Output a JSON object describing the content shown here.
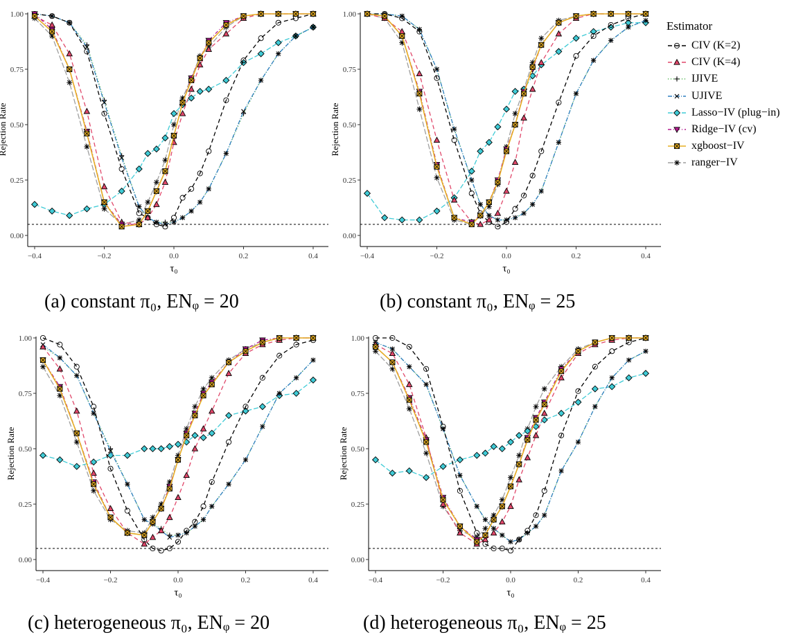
{
  "legend": {
    "title": "Estimator",
    "items": [
      {
        "label": "CIV (K=2)",
        "color": "#000000",
        "dash": "6,4",
        "marker": "circle"
      },
      {
        "label": "CIV (K=4)",
        "color": "#e0476a",
        "dash": "6,4",
        "marker": "triangle"
      },
      {
        "label": "IJIVE",
        "color": "#3caa3c",
        "dash": "1,3",
        "marker": "plus"
      },
      {
        "label": "UJIVE",
        "color": "#2e7fc0",
        "dash": "6,2,1,2",
        "marker": "x"
      },
      {
        "label": "Lasso−IV (plug−in)",
        "color": "#3fcbd6",
        "dash": "7,3",
        "marker": "diamond"
      },
      {
        "label": "Ridge−IV (cv)",
        "color": "#b3198d",
        "dash": "5,3,1,3",
        "marker": "triangle-down"
      },
      {
        "label": "xgboost−IV",
        "color": "#e6ad22",
        "dash": "",
        "marker": "boxx"
      },
      {
        "label": "ranger−IV",
        "color": "#9e9e9e",
        "dash": "8,3",
        "marker": "star"
      }
    ]
  },
  "captions": {
    "a": "(a) constant π₀, ENᵩ = 20",
    "b": "(b) constant π₀, ENᵩ = 25",
    "c": "(c) heterogeneous π₀, ENᵩ = 20",
    "d": "(d) heterogeneous π₀, ENᵩ = 25"
  },
  "chart_data": [
    {
      "type": "line",
      "panel": "a",
      "xlabel": "τ₀",
      "ylabel": "Rejection Rate",
      "xlim": [
        -0.4,
        0.4
      ],
      "ylim": [
        0,
        1
      ],
      "xticks": [
        "−0.4",
        "−0.2",
        "0.0",
        "0.2",
        "0.4"
      ],
      "yticks": [
        "0.00",
        "0.25",
        "0.50",
        "0.75",
        "1.00"
      ],
      "reference_line": 0.05,
      "x": [
        -0.4,
        -0.35,
        -0.3,
        -0.25,
        -0.2,
        -0.15,
        -0.1,
        -0.075,
        -0.05,
        -0.025,
        0,
        0.025,
        0.05,
        0.075,
        0.1,
        0.15,
        0.2,
        0.25,
        0.3,
        0.35,
        0.4
      ],
      "series": [
        {
          "name": "CIV (K=2)",
          "values": [
            1.0,
            0.99,
            0.96,
            0.83,
            0.55,
            0.3,
            0.1,
            0.08,
            0.05,
            0.04,
            0.08,
            0.17,
            0.21,
            0.28,
            0.38,
            0.61,
            0.79,
            0.89,
            0.96,
            0.98,
            1.0
          ]
        },
        {
          "name": "CIV (K=4)",
          "values": [
            0.99,
            0.95,
            0.82,
            0.56,
            0.22,
            0.06,
            0.05,
            0.08,
            0.14,
            0.24,
            0.42,
            0.55,
            0.66,
            0.77,
            0.84,
            0.91,
            0.98,
            1.0,
            1.0,
            1.0,
            1.0
          ]
        },
        {
          "name": "IJIVE",
          "values": [
            1.0,
            0.99,
            0.96,
            0.86,
            0.61,
            0.36,
            0.13,
            0.08,
            0.06,
            0.06,
            0.06,
            0.08,
            0.11,
            0.15,
            0.21,
            0.37,
            0.55,
            0.7,
            0.82,
            0.9,
            0.94
          ]
        },
        {
          "name": "UJIVE",
          "values": [
            1.0,
            0.99,
            0.96,
            0.85,
            0.6,
            0.35,
            0.13,
            0.08,
            0.06,
            0.05,
            0.06,
            0.08,
            0.11,
            0.15,
            0.21,
            0.37,
            0.56,
            0.7,
            0.82,
            0.9,
            0.94
          ]
        },
        {
          "name": "Lasso−IV (plug−in)",
          "values": [
            0.14,
            0.11,
            0.09,
            0.12,
            0.14,
            0.2,
            0.3,
            0.37,
            0.39,
            0.44,
            0.55,
            0.59,
            0.62,
            0.65,
            0.66,
            0.7,
            0.78,
            0.82,
            0.87,
            0.9,
            0.94
          ]
        },
        {
          "name": "Ridge−IV (cv)",
          "values": [
            1.0,
            0.93,
            0.75,
            0.47,
            0.15,
            0.05,
            0.05,
            0.11,
            0.2,
            0.29,
            0.45,
            0.6,
            0.71,
            0.8,
            0.88,
            0.96,
            0.99,
            1.0,
            1.0,
            1.0,
            1.0
          ]
        },
        {
          "name": "xgboost−IV",
          "values": [
            0.99,
            0.92,
            0.75,
            0.46,
            0.15,
            0.04,
            0.05,
            0.11,
            0.2,
            0.29,
            0.45,
            0.6,
            0.7,
            0.8,
            0.87,
            0.95,
            0.99,
            1.0,
            1.0,
            1.0,
            1.0
          ]
        },
        {
          "name": "ranger−IV",
          "values": [
            0.98,
            0.9,
            0.69,
            0.4,
            0.12,
            0.05,
            0.07,
            0.15,
            0.24,
            0.34,
            0.5,
            0.62,
            0.71,
            0.81,
            0.85,
            0.94,
            0.99,
            1.0,
            1.0,
            1.0,
            1.0
          ]
        }
      ]
    },
    {
      "type": "line",
      "panel": "b",
      "xlabel": "τ₀",
      "ylabel": "Rejection Rate",
      "xlim": [
        -0.4,
        0.4
      ],
      "ylim": [
        0,
        1
      ],
      "xticks": [
        "−0.4",
        "−0.2",
        "0.0",
        "0.2",
        "0.4"
      ],
      "yticks": [
        "0.00",
        "0.25",
        "0.50",
        "0.75",
        "1.00"
      ],
      "reference_line": 0.05,
      "x": [
        -0.4,
        -0.35,
        -0.3,
        -0.25,
        -0.2,
        -0.15,
        -0.1,
        -0.075,
        -0.05,
        -0.025,
        0,
        0.025,
        0.05,
        0.075,
        0.1,
        0.15,
        0.2,
        0.25,
        0.3,
        0.35,
        0.4
      ],
      "series": [
        {
          "name": "CIV (K=2)",
          "values": [
            1.0,
            1.0,
            0.98,
            0.92,
            0.71,
            0.43,
            0.19,
            0.1,
            0.06,
            0.04,
            0.06,
            0.12,
            0.18,
            0.27,
            0.38,
            0.6,
            0.81,
            0.9,
            0.95,
            0.98,
            1.0
          ]
        },
        {
          "name": "CIV (K=4)",
          "values": [
            1.0,
            0.98,
            0.92,
            0.73,
            0.43,
            0.16,
            0.06,
            0.05,
            0.07,
            0.1,
            0.2,
            0.33,
            0.53,
            0.66,
            0.78,
            0.91,
            0.98,
            1.0,
            1.0,
            1.0,
            1.0
          ]
        },
        {
          "name": "IJIVE",
          "values": [
            1.0,
            1.0,
            0.99,
            0.93,
            0.75,
            0.48,
            0.25,
            0.14,
            0.09,
            0.07,
            0.07,
            0.08,
            0.1,
            0.14,
            0.2,
            0.42,
            0.64,
            0.79,
            0.88,
            0.94,
            0.97
          ]
        },
        {
          "name": "UJIVE",
          "values": [
            1.0,
            1.0,
            0.99,
            0.93,
            0.75,
            0.48,
            0.25,
            0.14,
            0.09,
            0.07,
            0.07,
            0.08,
            0.1,
            0.14,
            0.2,
            0.42,
            0.64,
            0.79,
            0.88,
            0.94,
            0.97
          ]
        },
        {
          "name": "Lasso−IV (plug−in)",
          "values": [
            0.19,
            0.08,
            0.07,
            0.07,
            0.11,
            0.17,
            0.29,
            0.38,
            0.42,
            0.49,
            0.57,
            0.65,
            0.66,
            0.72,
            0.77,
            0.83,
            0.89,
            0.92,
            0.94,
            0.96,
            0.96
          ]
        },
        {
          "name": "Ridge−IV (cv)",
          "values": [
            1.0,
            0.99,
            0.9,
            0.65,
            0.32,
            0.08,
            0.06,
            0.09,
            0.15,
            0.25,
            0.39,
            0.5,
            0.65,
            0.75,
            0.86,
            0.96,
            0.99,
            1.0,
            1.0,
            1.0,
            1.0
          ]
        },
        {
          "name": "xgboost−IV",
          "values": [
            1.0,
            0.99,
            0.9,
            0.64,
            0.31,
            0.08,
            0.05,
            0.09,
            0.15,
            0.24,
            0.38,
            0.5,
            0.64,
            0.76,
            0.86,
            0.96,
            0.99,
            1.0,
            1.0,
            1.0,
            1.0
          ]
        },
        {
          "name": "ranger−IV",
          "values": [
            1.0,
            0.98,
            0.87,
            0.57,
            0.26,
            0.07,
            0.05,
            0.09,
            0.13,
            0.23,
            0.4,
            0.55,
            0.66,
            0.78,
            0.89,
            0.97,
            0.99,
            1.0,
            1.0,
            1.0,
            1.0
          ]
        }
      ]
    },
    {
      "type": "line",
      "panel": "c",
      "xlabel": "τ₀",
      "ylabel": "Rejection Rate",
      "xlim": [
        -0.4,
        0.4
      ],
      "ylim": [
        0,
        1
      ],
      "xticks": [
        "−0.4",
        "−0.2",
        "0.0",
        "0.2",
        "0.4"
      ],
      "yticks": [
        "0.00",
        "0.25",
        "0.50",
        "0.75",
        "1.00"
      ],
      "reference_line": 0.05,
      "x": [
        -0.4,
        -0.35,
        -0.3,
        -0.25,
        -0.2,
        -0.15,
        -0.1,
        -0.075,
        -0.05,
        -0.025,
        0,
        0.025,
        0.05,
        0.075,
        0.1,
        0.15,
        0.2,
        0.25,
        0.3,
        0.35,
        0.4
      ],
      "series": [
        {
          "name": "CIV (K=2)",
          "values": [
            1.0,
            0.97,
            0.87,
            0.69,
            0.41,
            0.22,
            0.09,
            0.05,
            0.04,
            0.05,
            0.08,
            0.13,
            0.17,
            0.24,
            0.35,
            0.53,
            0.69,
            0.82,
            0.92,
            0.97,
            0.99
          ]
        },
        {
          "name": "CIV (K=4)",
          "values": [
            0.96,
            0.86,
            0.67,
            0.39,
            0.23,
            0.12,
            0.07,
            0.1,
            0.13,
            0.19,
            0.28,
            0.38,
            0.5,
            0.59,
            0.67,
            0.84,
            0.93,
            0.97,
            0.99,
            1.0,
            1.0
          ]
        },
        {
          "name": "IJIVE",
          "values": [
            0.96,
            0.91,
            0.83,
            0.66,
            0.5,
            0.34,
            0.18,
            0.16,
            0.14,
            0.11,
            0.11,
            0.12,
            0.15,
            0.18,
            0.24,
            0.34,
            0.45,
            0.6,
            0.75,
            0.82,
            0.9
          ]
        },
        {
          "name": "UJIVE",
          "values": [
            0.97,
            0.91,
            0.83,
            0.66,
            0.49,
            0.34,
            0.18,
            0.16,
            0.13,
            0.1,
            0.11,
            0.12,
            0.15,
            0.18,
            0.24,
            0.34,
            0.45,
            0.6,
            0.75,
            0.82,
            0.9
          ]
        },
        {
          "name": "Lasso−IV (plug−in)",
          "values": [
            0.47,
            0.45,
            0.42,
            0.44,
            0.47,
            0.47,
            0.5,
            0.5,
            0.5,
            0.51,
            0.52,
            0.53,
            0.56,
            0.55,
            0.57,
            0.65,
            0.67,
            0.69,
            0.74,
            0.75,
            0.81
          ]
        },
        {
          "name": "Ridge−IV (cv)",
          "values": [
            0.9,
            0.78,
            0.57,
            0.35,
            0.19,
            0.12,
            0.11,
            0.17,
            0.23,
            0.33,
            0.45,
            0.57,
            0.66,
            0.75,
            0.8,
            0.89,
            0.95,
            0.99,
            1.0,
            1.0,
            1.0
          ]
        },
        {
          "name": "xgboost−IV",
          "values": [
            0.9,
            0.77,
            0.57,
            0.34,
            0.19,
            0.12,
            0.11,
            0.17,
            0.23,
            0.32,
            0.45,
            0.56,
            0.65,
            0.74,
            0.79,
            0.89,
            0.94,
            0.98,
            1.0,
            1.0,
            1.0
          ]
        },
        {
          "name": "ranger−IV",
          "values": [
            0.87,
            0.74,
            0.53,
            0.31,
            0.18,
            0.13,
            0.12,
            0.19,
            0.25,
            0.35,
            0.47,
            0.59,
            0.69,
            0.77,
            0.82,
            0.9,
            0.95,
            0.98,
            1.0,
            1.0,
            1.0
          ]
        }
      ]
    },
    {
      "type": "line",
      "panel": "d",
      "xlabel": "τ₀",
      "ylabel": "Rejection Rate",
      "xlim": [
        -0.4,
        0.4
      ],
      "ylim": [
        0,
        1
      ],
      "xticks": [
        "−0.4",
        "−0.2",
        "0.0",
        "0.2",
        "0.4"
      ],
      "yticks": [
        "0.00",
        "0.25",
        "0.50",
        "0.75",
        "1.00"
      ],
      "reference_line": 0.05,
      "x": [
        -0.4,
        -0.35,
        -0.3,
        -0.25,
        -0.2,
        -0.15,
        -0.1,
        -0.075,
        -0.05,
        -0.025,
        0,
        0.025,
        0.05,
        0.075,
        0.1,
        0.15,
        0.2,
        0.25,
        0.3,
        0.35,
        0.4
      ],
      "series": [
        {
          "name": "CIV (K=2)",
          "values": [
            1.0,
            1.0,
            0.96,
            0.86,
            0.6,
            0.31,
            0.12,
            0.07,
            0.05,
            0.05,
            0.04,
            0.09,
            0.13,
            0.2,
            0.31,
            0.56,
            0.76,
            0.87,
            0.94,
            0.98,
            1.0
          ]
        },
        {
          "name": "CIV (K=4)",
          "values": [
            0.97,
            0.93,
            0.79,
            0.55,
            0.25,
            0.12,
            0.07,
            0.09,
            0.12,
            0.17,
            0.24,
            0.36,
            0.46,
            0.56,
            0.66,
            0.82,
            0.93,
            0.97,
            0.99,
            1.0,
            1.0
          ]
        },
        {
          "name": "IJIVE",
          "values": [
            0.98,
            0.95,
            0.87,
            0.79,
            0.59,
            0.38,
            0.24,
            0.18,
            0.14,
            0.11,
            0.08,
            0.09,
            0.12,
            0.15,
            0.2,
            0.4,
            0.53,
            0.69,
            0.82,
            0.9,
            0.94
          ]
        },
        {
          "name": "UJIVE",
          "values": [
            0.98,
            0.95,
            0.87,
            0.79,
            0.59,
            0.38,
            0.24,
            0.18,
            0.14,
            0.11,
            0.08,
            0.09,
            0.12,
            0.15,
            0.2,
            0.4,
            0.53,
            0.69,
            0.82,
            0.9,
            0.94
          ]
        },
        {
          "name": "Lasso−IV (plug−in)",
          "values": [
            0.45,
            0.39,
            0.4,
            0.37,
            0.42,
            0.45,
            0.47,
            0.48,
            0.51,
            0.5,
            0.53,
            0.56,
            0.58,
            0.6,
            0.63,
            0.66,
            0.71,
            0.77,
            0.78,
            0.82,
            0.84
          ]
        },
        {
          "name": "Ridge−IV (cv)",
          "values": [
            0.96,
            0.89,
            0.73,
            0.54,
            0.28,
            0.15,
            0.09,
            0.11,
            0.18,
            0.24,
            0.33,
            0.43,
            0.55,
            0.64,
            0.71,
            0.86,
            0.94,
            0.98,
            1.0,
            1.0,
            1.0
          ]
        },
        {
          "name": "xgboost−IV",
          "values": [
            0.96,
            0.89,
            0.72,
            0.53,
            0.27,
            0.15,
            0.08,
            0.11,
            0.18,
            0.24,
            0.33,
            0.43,
            0.54,
            0.63,
            0.7,
            0.85,
            0.94,
            0.98,
            1.0,
            1.0,
            1.0
          ]
        },
        {
          "name": "ranger−IV",
          "values": [
            0.94,
            0.86,
            0.68,
            0.48,
            0.24,
            0.13,
            0.1,
            0.14,
            0.2,
            0.27,
            0.37,
            0.47,
            0.59,
            0.69,
            0.77,
            0.87,
            0.95,
            0.98,
            1.0,
            1.0,
            1.0
          ]
        }
      ]
    }
  ]
}
